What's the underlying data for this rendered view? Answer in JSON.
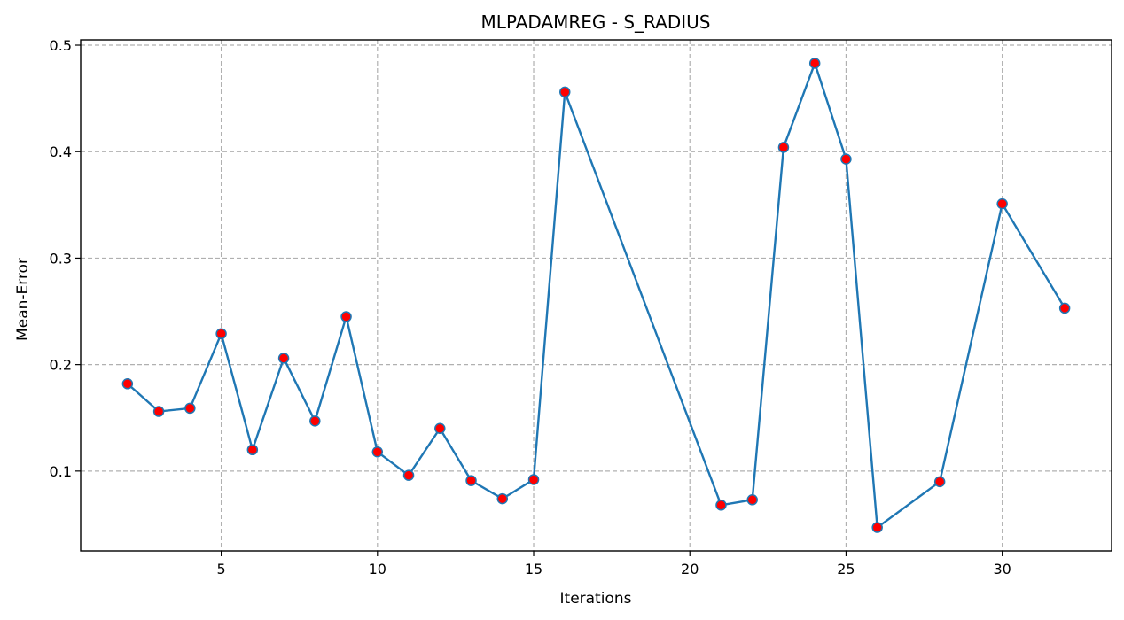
{
  "chart_data": {
    "type": "line",
    "title": "MLPADAMREG - S_RADIUS",
    "xlabel": "Iterations",
    "ylabel": "Mean-Error",
    "xlim": [
      0.5,
      33.5
    ],
    "ylim": [
      0.025,
      0.505
    ],
    "xticks": [
      5,
      10,
      15,
      20,
      25,
      30
    ],
    "yticks": [
      0.1,
      0.2,
      0.3,
      0.4,
      0.5
    ],
    "grid": true,
    "colors": {
      "line": "#1f77b4",
      "marker_face": "#ff0000",
      "marker_edge": "#1f77b4"
    },
    "series": [
      {
        "x": [
          2,
          3,
          4,
          5,
          6,
          7,
          8,
          9,
          10,
          11,
          12,
          13,
          14,
          15,
          16,
          21,
          22,
          23,
          24,
          25,
          26,
          28,
          30,
          32
        ],
        "y": [
          0.182,
          0.156,
          0.159,
          0.229,
          0.12,
          0.206,
          0.147,
          0.245,
          0.118,
          0.096,
          0.14,
          0.091,
          0.074,
          0.092,
          0.456,
          0.068,
          0.073,
          0.404,
          0.483,
          0.393,
          0.047,
          0.09,
          0.351,
          0.253
        ]
      }
    ]
  }
}
